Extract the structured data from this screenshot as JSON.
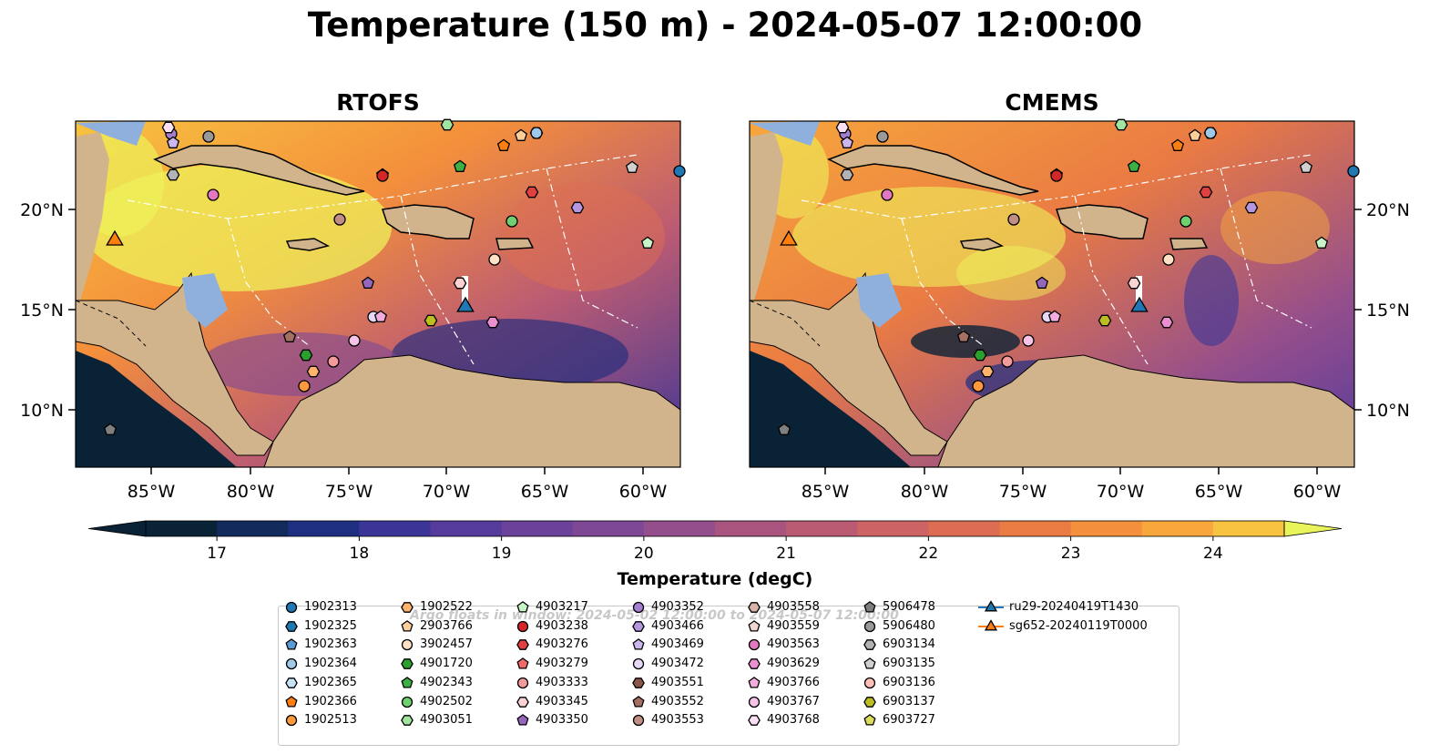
{
  "title": "Temperature (150 m) - 2024-05-07 12:00:00",
  "panels": [
    {
      "title": "RTOFS"
    },
    {
      "title": "CMEMS"
    }
  ],
  "axes": {
    "lon_ticks": [
      "85°W",
      "80°W",
      "75°W",
      "70°W",
      "65°W",
      "60°W"
    ],
    "lat_ticks": [
      "20°N",
      "15°N",
      "10°N"
    ]
  },
  "colorbar": {
    "label": "Temperature (degC)",
    "ticks": [
      "17",
      "18",
      "19",
      "20",
      "21",
      "22",
      "23",
      "24"
    ],
    "range": [
      16.5,
      24.5
    ],
    "colors": [
      "#0a2236",
      "#132a5c",
      "#1e2f82",
      "#3b3597",
      "#553b9c",
      "#6b429a",
      "#7f4896",
      "#944e8c",
      "#a8547f",
      "#bb5b73",
      "#cd6364",
      "#dd6d52",
      "#ea7b43",
      "#f48f3c",
      "#f7a73c",
      "#f7c340"
    ],
    "extend_max_color": "#e9f45a"
  },
  "watermark": "Argo floats in window: 2024-05-02 12:00:00 to 2024-05-07 12:00:00",
  "legend": [
    {
      "label": "1902313",
      "marker": "circle",
      "color": "#1f77b4"
    },
    {
      "label": "1902325",
      "marker": "hexagon",
      "color": "#1f77b4"
    },
    {
      "label": "1902363",
      "marker": "pentagon",
      "color": "#5b9bd5"
    },
    {
      "label": "1902364",
      "marker": "circle",
      "color": "#9ec9e8"
    },
    {
      "label": "1902365",
      "marker": "hexagon",
      "color": "#c6e3f5"
    },
    {
      "label": "1902366",
      "marker": "pentagon",
      "color": "#ff7f0e"
    },
    {
      "label": "1902513",
      "marker": "circle",
      "color": "#ff9a3c"
    },
    {
      "label": "1902522",
      "marker": "hexagon",
      "color": "#ffb36b"
    },
    {
      "label": "2903766",
      "marker": "pentagon",
      "color": "#ffcf9a"
    },
    {
      "label": "3902457",
      "marker": "circle",
      "color": "#ffe2c4"
    },
    {
      "label": "4901720",
      "marker": "hexagon",
      "color": "#2ca02c"
    },
    {
      "label": "4902343",
      "marker": "pentagon",
      "color": "#3cb043"
    },
    {
      "label": "4902502",
      "marker": "circle",
      "color": "#6fd06f"
    },
    {
      "label": "4903051",
      "marker": "hexagon",
      "color": "#a0e6a0"
    },
    {
      "label": "4903217",
      "marker": "pentagon",
      "color": "#c8f5c8"
    },
    {
      "label": "4903238",
      "marker": "circle",
      "color": "#d62728"
    },
    {
      "label": "4903276",
      "marker": "hexagon",
      "color": "#e0403f"
    },
    {
      "label": "4903279",
      "marker": "pentagon",
      "color": "#f06a6a"
    },
    {
      "label": "4903333",
      "marker": "circle",
      "color": "#f59a9a"
    },
    {
      "label": "4903345",
      "marker": "hexagon",
      "color": "#fcd2d2"
    },
    {
      "label": "4903350",
      "marker": "pentagon",
      "color": "#9467bd"
    },
    {
      "label": "4903352",
      "marker": "circle",
      "color": "#a57ed0"
    },
    {
      "label": "4903466",
      "marker": "hexagon",
      "color": "#b796e0"
    },
    {
      "label": "4903469",
      "marker": "pentagon",
      "color": "#cdb5ee"
    },
    {
      "label": "4903472",
      "marker": "circle",
      "color": "#e6d8f7"
    },
    {
      "label": "4903551",
      "marker": "hexagon",
      "color": "#8c564b"
    },
    {
      "label": "4903552",
      "marker": "pentagon",
      "color": "#a66f63"
    },
    {
      "label": "4903553",
      "marker": "circle",
      "color": "#c08e84"
    },
    {
      "label": "4903558",
      "marker": "hexagon",
      "color": "#d9b2a9"
    },
    {
      "label": "4903559",
      "marker": "pentagon",
      "color": "#f0d6cf"
    },
    {
      "label": "4903563",
      "marker": "circle",
      "color": "#e377c2"
    },
    {
      "label": "4903629",
      "marker": "hexagon",
      "color": "#ec8fd0"
    },
    {
      "label": "4903766",
      "marker": "pentagon",
      "color": "#f3acde"
    },
    {
      "label": "4903767",
      "marker": "circle",
      "color": "#f7c4e8"
    },
    {
      "label": "4903768",
      "marker": "hexagon",
      "color": "#fbe0f3"
    },
    {
      "label": "5906478",
      "marker": "pentagon",
      "color": "#7f7f7f"
    },
    {
      "label": "5906480",
      "marker": "circle",
      "color": "#999999"
    },
    {
      "label": "6903134",
      "marker": "hexagon",
      "color": "#b3b3b3"
    },
    {
      "label": "6903135",
      "marker": "pentagon",
      "color": "#d0d0d0"
    },
    {
      "label": "6903136",
      "marker": "circle",
      "color": "#ffc0b8"
    },
    {
      "label": "6903137",
      "marker": "hexagon",
      "color": "#bcbd22"
    },
    {
      "label": "6903727",
      "marker": "pentagon",
      "color": "#dbdb5c"
    },
    {
      "label": "ru29-20240419T1430",
      "marker": "triangle",
      "color": "#1f77b4",
      "line": "#1f77b4"
    },
    {
      "label": "sg652-20240119T0000",
      "marker": "triangle",
      "color": "#ff7f0e",
      "line": "#ff7f0e"
    }
  ]
}
